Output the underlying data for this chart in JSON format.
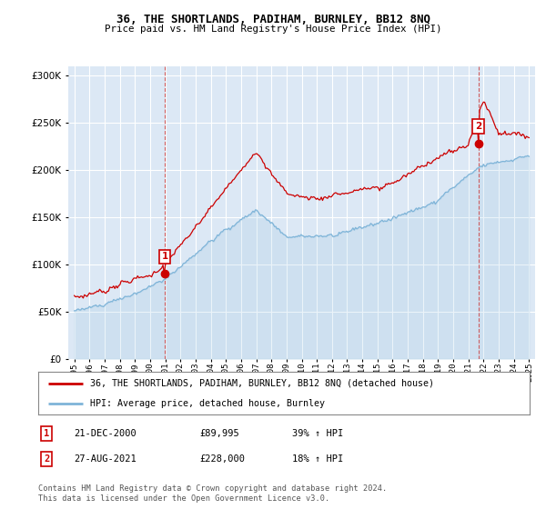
{
  "title1": "36, THE SHORTLANDS, PADIHAM, BURNLEY, BB12 8NQ",
  "title2": "Price paid vs. HM Land Registry's House Price Index (HPI)",
  "legend_label1": "36, THE SHORTLANDS, PADIHAM, BURNLEY, BB12 8NQ (detached house)",
  "legend_label2": "HPI: Average price, detached house, Burnley",
  "sale1_date": "21-DEC-2000",
  "sale1_price": "£89,995",
  "sale1_hpi": "39% ↑ HPI",
  "sale2_date": "27-AUG-2021",
  "sale2_price": "£228,000",
  "sale2_hpi": "18% ↑ HPI",
  "footer": "Contains HM Land Registry data © Crown copyright and database right 2024.\nThis data is licensed under the Open Government Licence v3.0.",
  "hpi_color": "#7eb4d8",
  "price_color": "#cc0000",
  "marker_color": "#cc0000",
  "sale1_x": 2000.97,
  "sale1_y": 89995,
  "sale2_x": 2021.65,
  "sale2_y": 228000,
  "ylim": [
    0,
    310000
  ],
  "xlim_start": 1994.6,
  "xlim_end": 2025.4,
  "bg_color": "#dce8f5",
  "plot_bg": "#dce8f5"
}
